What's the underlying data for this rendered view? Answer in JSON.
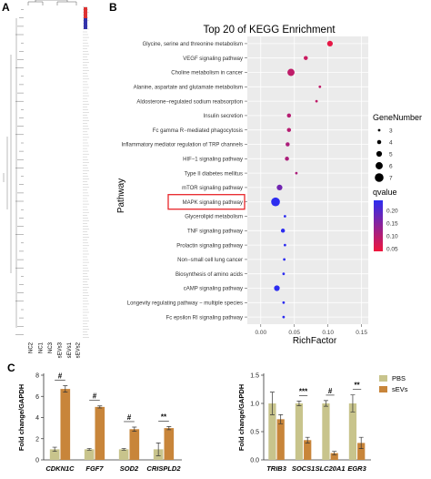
{
  "panel_labels": {
    "a": "A",
    "b": "B",
    "c": "C"
  },
  "colors": {
    "heat_red": "#e0383f",
    "heat_blue": "#2b2fa5",
    "pbs": "#c8c48c",
    "sev": "#c8853a",
    "q_low": "#f0163c",
    "q_high": "#2d2df0",
    "highlight": "#e8262a"
  },
  "heatmap": {
    "columns": [
      "NC2",
      "NC1",
      "NC3",
      "sEVs3",
      "sEVs1",
      "sEVs2"
    ],
    "col_centers_frac": [
      0.12,
      0.29,
      0.45,
      0.62,
      0.78,
      0.93
    ]
  },
  "chart_data": [
    {
      "type": "scatter",
      "title": "Top 20 of KEGG Enrichment",
      "xlabel": "RichFactor",
      "ylabel": "Pathway",
      "xlim": [
        -0.02,
        0.16
      ],
      "xticks": [
        "0.00",
        "0.05",
        "0.10",
        "0.15"
      ],
      "xtick_values": [
        0,
        0.05,
        0.1,
        0.15
      ],
      "grid": true,
      "highlight": "MAPK signaling pathway",
      "categories": [
        "Glycine, serine and threonine metabolism",
        "VEGF signaling pathway",
        "Choline metabolism in cancer",
        "Alanine, aspartate and glutamate metabolism",
        "Aldosterone−regulated sodium reabsorption",
        "Insulin secretion",
        "Fc gamma R−mediated phagocytosis",
        "Inflammatory mediator regulation of TRP channels",
        "HIF−1 signaling pathway",
        "Type II diabetes mellitus",
        "mTOR signaling pathway",
        "MAPK signaling pathway",
        "Glycerolipid metabolism",
        "TNF signaling pathway",
        "Prolactin signaling pathway",
        "Non−small cell lung cancer",
        "Biosynthesis of amino acids",
        "cAMP signaling pathway",
        "Longevity regulating pathway − multiple species",
        "Fc epsilon RI signaling pathway"
      ],
      "rich_factor": [
        0.103,
        0.067,
        0.045,
        0.088,
        0.083,
        0.042,
        0.042,
        0.04,
        0.039,
        0.053,
        0.028,
        0.022,
        0.036,
        0.033,
        0.036,
        0.035,
        0.034,
        0.024,
        0.034,
        0.034
      ],
      "gene_number": [
        5,
        4,
        6,
        3,
        3,
        4,
        4,
        4,
        4,
        3,
        5,
        7,
        3,
        4,
        3,
        3,
        3,
        5,
        3,
        3
      ],
      "qvalue": [
        0.05,
        0.08,
        0.09,
        0.09,
        0.09,
        0.1,
        0.1,
        0.11,
        0.11,
        0.11,
        0.17,
        0.24,
        0.24,
        0.24,
        0.24,
        0.24,
        0.24,
        0.24,
        0.24,
        0.24
      ],
      "legend_size": {
        "title": "GeneNumber",
        "labels": [
          "3",
          "4",
          "5",
          "6",
          "7"
        ],
        "values": [
          3,
          4,
          5,
          6,
          7
        ]
      },
      "legend_color": {
        "title": "qvalue",
        "labels": [
          "0.20",
          "0.15",
          "0.10",
          "0.05"
        ],
        "values": [
          0.2,
          0.15,
          0.1,
          0.05
        ],
        "range": [
          0.04,
          0.24
        ]
      }
    },
    {
      "type": "bar",
      "ylabel": "Fold change/GAPDH",
      "categories": [
        "CDKN1C",
        "FGF7",
        "SOD2",
        "CRISPLD2"
      ],
      "ylim": [
        0,
        8
      ],
      "yticks": [
        "0",
        "2",
        "4",
        "6",
        "8"
      ],
      "ytick_values": [
        0,
        2,
        4,
        6,
        8
      ],
      "series": [
        {
          "name": "PBS",
          "values": [
            1.0,
            1.0,
            1.0,
            1.0
          ],
          "errors": [
            0.2,
            0.08,
            0.08,
            0.6
          ]
        },
        {
          "name": "sEVs",
          "values": [
            6.7,
            5.0,
            2.9,
            3.0
          ],
          "errors": [
            0.3,
            0.1,
            0.2,
            0.15
          ]
        }
      ],
      "significance": [
        "#",
        "#",
        "#",
        "**"
      ]
    },
    {
      "type": "bar",
      "ylabel": "Fold change/GAPDH",
      "categories": [
        "TRIB3",
        "SOCS1",
        "SLC20A1",
        "EGR3"
      ],
      "ylim": [
        0,
        1.5
      ],
      "yticks": [
        "0.0",
        "0.5",
        "1.0",
        "1.5"
      ],
      "ytick_values": [
        0,
        0.5,
        1.0,
        1.5
      ],
      "series": [
        {
          "name": "PBS",
          "values": [
            1.0,
            1.0,
            1.0,
            1.0
          ],
          "errors": [
            0.2,
            0.04,
            0.05,
            0.15
          ]
        },
        {
          "name": "sEVs",
          "values": [
            0.72,
            0.35,
            0.12,
            0.3
          ],
          "errors": [
            0.08,
            0.05,
            0.03,
            0.1
          ]
        }
      ],
      "significance": [
        "",
        "***",
        "#",
        "**"
      ],
      "legend": [
        "PBS",
        "sEVs"
      ]
    }
  ]
}
